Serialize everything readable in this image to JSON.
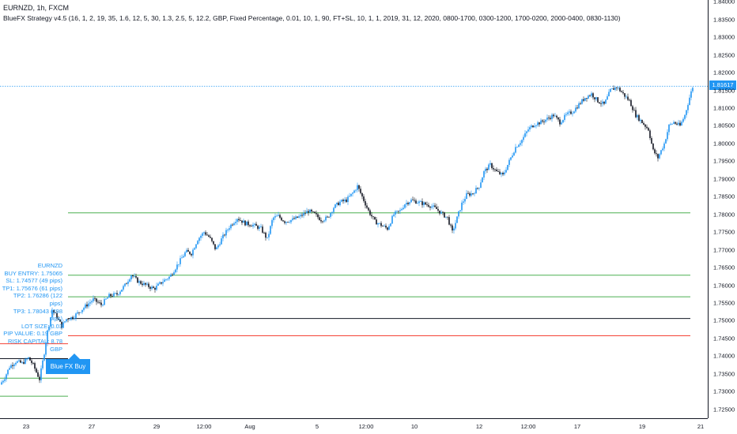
{
  "header": {
    "symbol_line": "EURNZD, 1h, FXCM",
    "strategy_line": "BlueFX Strategy v4.5 (16, 1, 2, 19, 35, 1.6, 12, 5, 30, 1.3, 2.5, 5, 12.2, GBP, Fixed Percentage, 0.01, 10, 1, 90, FT+SL, 10, 1, 1, 2019, 31, 12, 2020, 0800-1700, 0300-1200, 1700-0200, 2000-0400, 0830-1130)"
  },
  "info_box": {
    "lines": [
      "EURNZD",
      "BUY ENTRY: 1.75065",
      "SL: 1.74577 (49 pips)",
      "TP1: 1.75676 (61 pips)",
      "TP2: 1.76286 (122 pips)",
      "TP3: 1.78043 (298 pips)",
      "LOT SIZE: 0.03",
      "PIP VALUE: 0.19 GBP",
      "RISK CAPITAL: 8.78 GBP"
    ]
  },
  "buy_signal": {
    "label": "Blue FX Buy"
  },
  "price_axis": {
    "ticks": [
      "1.84000",
      "1.83500",
      "1.83000",
      "1.82500",
      "1.82000",
      "1.81500",
      "1.81000",
      "1.80500",
      "1.80000",
      "1.79500",
      "1.79000",
      "1.78500",
      "1.78000",
      "1.77500",
      "1.77000",
      "1.76500",
      "1.76000",
      "1.75500",
      "1.75000",
      "1.74500",
      "1.74000",
      "1.73500",
      "1.73000",
      "1.72500"
    ],
    "current_price": "1.81617"
  },
  "time_axis": {
    "ticks": [
      "23",
      "27",
      "29",
      "12:00",
      "Aug",
      "5",
      "12:00",
      "10",
      "12",
      "12:00",
      "17",
      "19",
      "21"
    ]
  },
  "chart_data": {
    "type": "candlestick",
    "symbol": "EURNZD",
    "timeframe": "1h",
    "ylim": [
      1.7225,
      1.8405
    ],
    "levels": [
      {
        "name": "BUY ENTRY",
        "value": 1.75065,
        "color": "#131722"
      },
      {
        "name": "SL",
        "value": 1.74577,
        "color": "#f44336"
      },
      {
        "name": "TP1",
        "value": 1.75676,
        "color": "#4caf50"
      },
      {
        "name": "TP2",
        "value": 1.76286,
        "color": "#4caf50"
      },
      {
        "name": "TP3",
        "value": 1.78043,
        "color": "#4caf50"
      }
    ],
    "current_price": 1.81617,
    "path": [
      [
        0,
        1.732
      ],
      [
        6,
        1.734
      ],
      [
        12,
        1.737
      ],
      [
        20,
        1.7385
      ],
      [
        28,
        1.738
      ],
      [
        36,
        1.7395
      ],
      [
        42,
        1.7375
      ],
      [
        50,
        1.7335
      ],
      [
        56,
        1.741
      ],
      [
        60,
        1.747
      ],
      [
        66,
        1.753
      ],
      [
        72,
        1.751
      ],
      [
        78,
        1.7485
      ],
      [
        84,
        1.7505
      ],
      [
        92,
        1.751
      ],
      [
        100,
        1.7525
      ],
      [
        110,
        1.7545
      ],
      [
        118,
        1.756
      ],
      [
        128,
        1.7545
      ],
      [
        138,
        1.757
      ],
      [
        148,
        1.7575
      ],
      [
        158,
        1.76
      ],
      [
        166,
        1.763
      ],
      [
        175,
        1.761
      ],
      [
        185,
        1.76
      ],
      [
        195,
        1.759
      ],
      [
        205,
        1.761
      ],
      [
        215,
        1.7625
      ],
      [
        225,
        1.766
      ],
      [
        235,
        1.7695
      ],
      [
        242,
        1.769
      ],
      [
        250,
        1.773
      ],
      [
        258,
        1.775
      ],
      [
        265,
        1.7735
      ],
      [
        273,
        1.77
      ],
      [
        280,
        1.773
      ],
      [
        290,
        1.7765
      ],
      [
        300,
        1.779
      ],
      [
        310,
        1.7775
      ],
      [
        320,
        1.777
      ],
      [
        330,
        1.776
      ],
      [
        338,
        1.773
      ],
      [
        345,
        1.779
      ],
      [
        352,
        1.7795
      ],
      [
        360,
        1.778
      ],
      [
        370,
        1.7785
      ],
      [
        380,
        1.7795
      ],
      [
        390,
        1.781
      ],
      [
        398,
        1.78
      ],
      [
        406,
        1.7785
      ],
      [
        414,
        1.779
      ],
      [
        422,
        1.782
      ],
      [
        430,
        1.7835
      ],
      [
        438,
        1.784
      ],
      [
        446,
        1.786
      ],
      [
        452,
        1.788
      ],
      [
        458,
        1.785
      ],
      [
        466,
        1.781
      ],
      [
        474,
        1.778
      ],
      [
        482,
        1.777
      ],
      [
        490,
        1.776
      ],
      [
        498,
        1.78
      ],
      [
        506,
        1.781
      ],
      [
        512,
        1.783
      ],
      [
        520,
        1.784
      ],
      [
        528,
        1.7835
      ],
      [
        536,
        1.783
      ],
      [
        544,
        1.7825
      ],
      [
        552,
        1.7815
      ],
      [
        560,
        1.78
      ],
      [
        566,
        1.779
      ],
      [
        572,
        1.775
      ],
      [
        578,
        1.779
      ],
      [
        584,
        1.783
      ],
      [
        590,
        1.7855
      ],
      [
        598,
        1.786
      ],
      [
        606,
        1.788
      ],
      [
        612,
        1.792
      ],
      [
        620,
        1.794
      ],
      [
        628,
        1.792
      ],
      [
        636,
        1.791
      ],
      [
        644,
        1.795
      ],
      [
        652,
        1.799
      ],
      [
        660,
        1.801
      ],
      [
        668,
        1.804
      ],
      [
        676,
        1.8055
      ],
      [
        684,
        1.806
      ],
      [
        692,
        1.807
      ],
      [
        700,
        1.808
      ],
      [
        708,
        1.806
      ],
      [
        716,
        1.808
      ],
      [
        724,
        1.809
      ],
      [
        732,
        1.811
      ],
      [
        740,
        1.813
      ],
      [
        748,
        1.814
      ],
      [
        756,
        1.812
      ],
      [
        764,
        1.811
      ],
      [
        772,
        1.815
      ],
      [
        780,
        1.816
      ],
      [
        788,
        1.814
      ],
      [
        796,
        1.812
      ],
      [
        804,
        1.808
      ],
      [
        812,
        1.806
      ],
      [
        820,
        1.804
      ],
      [
        826,
        1.798
      ],
      [
        832,
        1.796
      ],
      [
        840,
        1.8
      ],
      [
        846,
        1.805
      ],
      [
        852,
        1.806
      ],
      [
        860,
        1.805
      ],
      [
        866,
        1.808
      ],
      [
        872,
        1.813
      ],
      [
        876,
        1.816
      ]
    ]
  },
  "colors": {
    "up": "#2196f3",
    "down": "#131722",
    "target": "#4caf50",
    "stop": "#f44336",
    "accent": "#2196f3"
  }
}
